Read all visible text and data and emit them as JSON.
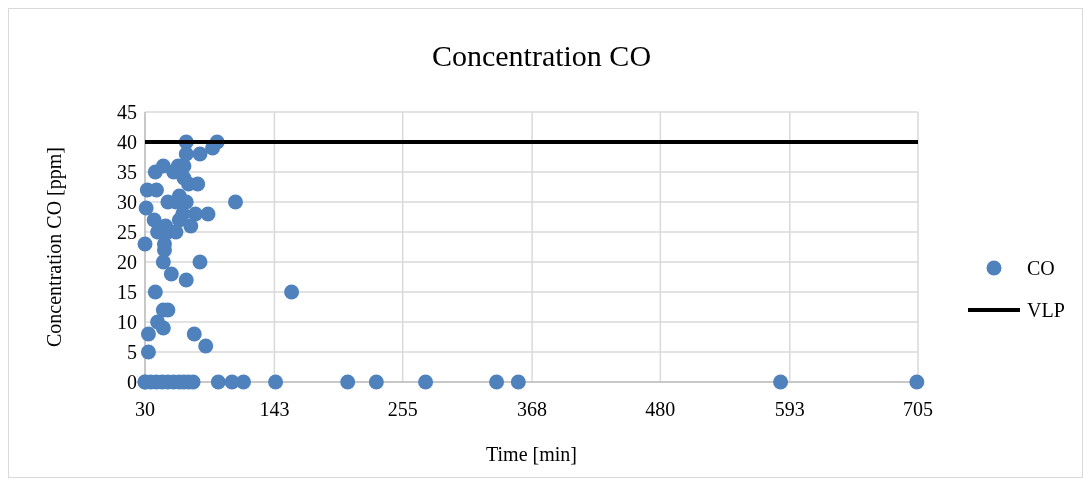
{
  "chart_data": {
    "type": "scatter",
    "title": "Concentration CO",
    "xlabel": "Time [min]",
    "ylabel": "Concentration  CO [ppm]",
    "xlim": [
      30,
      705
    ],
    "xticks": [
      30,
      143,
      255,
      368,
      480,
      593,
      705
    ],
    "ylim": [
      0,
      45
    ],
    "yticks": [
      0,
      5,
      10,
      15,
      20,
      25,
      30,
      35,
      40,
      45
    ],
    "grid": true,
    "legend": "right",
    "series": [
      {
        "name": "CO",
        "color": "#4f81bd",
        "marker": "circle",
        "x": [
          30,
          33,
          33,
          30,
          31,
          32,
          39,
          40,
          38,
          41,
          39,
          41,
          46,
          46,
          50,
          46,
          47,
          47,
          48,
          50,
          46,
          50,
          53,
          55,
          57,
          57,
          59,
          60,
          60,
          63,
          66,
          66,
          64,
          64,
          66,
          66,
          68,
          70,
          73,
          74,
          76,
          78,
          78,
          83,
          85,
          89,
          93,
          109,
          158,
          30,
          35,
          40,
          45,
          50,
          55,
          60,
          64,
          68,
          72,
          94,
          106,
          116,
          144,
          207,
          232,
          275,
          337,
          356,
          585,
          704
        ],
        "values": [
          0,
          5,
          8,
          23,
          29,
          32,
          35,
          32,
          27,
          25,
          15,
          10,
          12,
          9,
          12,
          20,
          22,
          23,
          26,
          25,
          36,
          30,
          18,
          35,
          30,
          25,
          36,
          31,
          27,
          28,
          30,
          17,
          34,
          36,
          40,
          38,
          33,
          26,
          8,
          28,
          33,
          38,
          20,
          6,
          28,
          39,
          40,
          30,
          15,
          0,
          0,
          0,
          0,
          0,
          0,
          0,
          0,
          0,
          0,
          0,
          0,
          0,
          0,
          0,
          0,
          0,
          0,
          0,
          0,
          0
        ]
      },
      {
        "name": "VLP",
        "color": "#000000",
        "type": "line",
        "x": [
          30,
          705
        ],
        "values": [
          40,
          40
        ]
      }
    ]
  }
}
